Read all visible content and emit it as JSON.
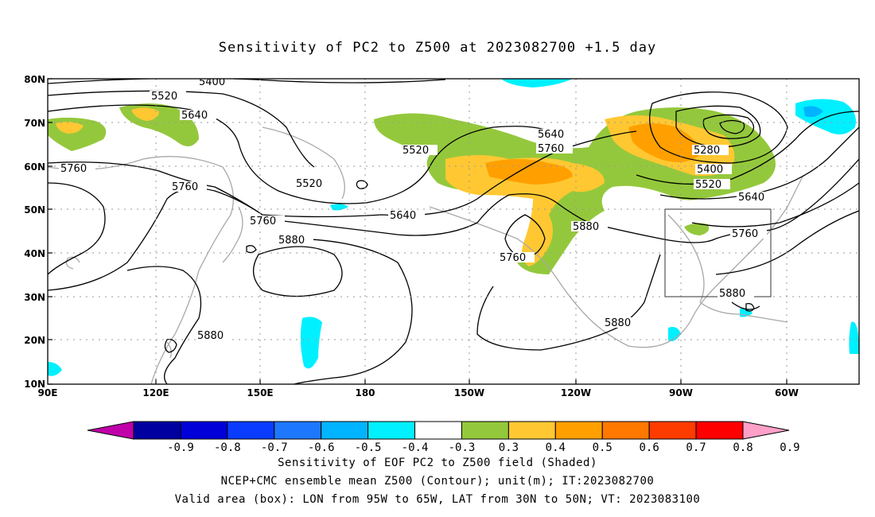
{
  "title": "Sensitivity of PC2 to Z500 at 2023082700 +1.5 day",
  "lat_labels": [
    "80N",
    "70N",
    "60N",
    "50N",
    "40N",
    "30N",
    "20N",
    "10N"
  ],
  "lon_labels": [
    "90E",
    "120E",
    "150E",
    "180",
    "150W",
    "120W",
    "90W",
    "60W"
  ],
  "contour_labels": [
    "5400",
    "5520",
    "5640",
    "5760",
    "5880",
    "5280"
  ],
  "colorbar": {
    "labels": [
      "-0.9",
      "-0.8",
      "-0.7",
      "-0.6",
      "-0.5",
      "-0.4",
      "-0.3",
      "0.3",
      "0.4",
      "0.5",
      "0.6",
      "0.7",
      "0.8",
      "0.9"
    ],
    "colors": [
      "#c000a8",
      "#0000a0",
      "#0000d8",
      "#0a3cff",
      "#1e78ff",
      "#00b4ff",
      "#00f0ff",
      "#ffffff",
      "#94c83c",
      "#ffc832",
      "#ffa000",
      "#ff7800",
      "#ff3c00",
      "#ff0000",
      "#ffa0c8"
    ]
  },
  "valid_box": {
    "lon": [
      "95W",
      "65W"
    ],
    "lat": [
      "30N",
      "50N"
    ]
  },
  "captions": [
    "Sensitivity of EOF PC2 to Z500 field (Shaded)",
    "NCEP+CMC ensemble mean Z500 (Contour); unit(m); IT:2023082700",
    "Valid area (box): LON from 95W to 65W, LAT from 30N to 50N; VT: 2023083100"
  ]
}
